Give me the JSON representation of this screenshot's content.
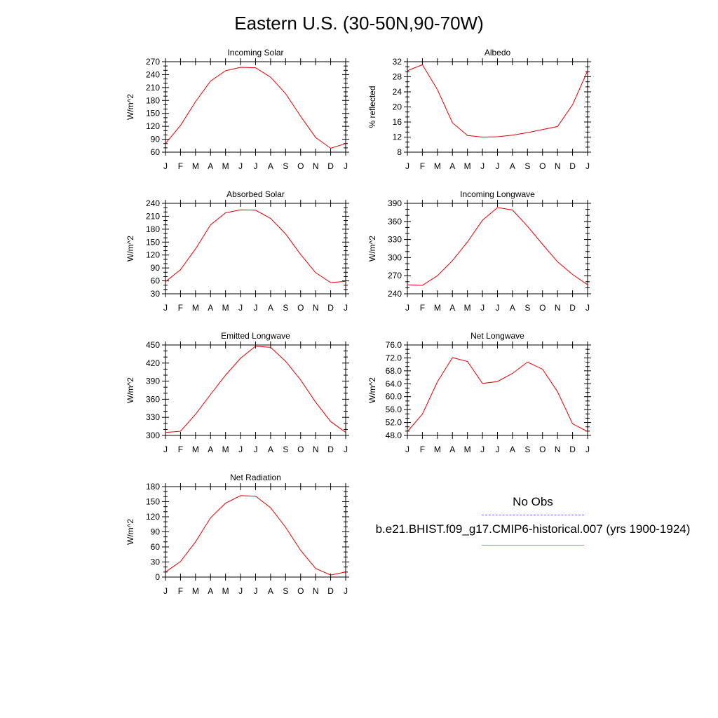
{
  "title": "Eastern U.S. (30-50N,90-70W)",
  "colors": {
    "model": "#e00000",
    "obs": "#6666ff",
    "model_legend": "#ff6666"
  },
  "legend": {
    "obs_label": "No Obs",
    "model_label": "b.e21.BHIST.f09_g17.CMIP6-historical.007 (yrs 1900-1924)"
  },
  "chart_data": [
    {
      "type": "line",
      "title": "Incoming Solar",
      "ylabel": "W/m^2",
      "x": [
        "J",
        "F",
        "M",
        "A",
        "M",
        "J",
        "J",
        "A",
        "S",
        "O",
        "N",
        "D",
        "J"
      ],
      "ylim": [
        60,
        270
      ],
      "yticks": [
        "60",
        "90",
        "120",
        "150",
        "180",
        "210",
        "240",
        "270"
      ],
      "series": [
        {
          "values": [
            80,
            122,
            177,
            225,
            249,
            257,
            256,
            234,
            196,
            143,
            94,
            69,
            80
          ]
        }
      ]
    },
    {
      "type": "line",
      "title": "Albedo",
      "ylabel": "% reflected",
      "x": [
        "J",
        "F",
        "M",
        "A",
        "M",
        "J",
        "J",
        "A",
        "S",
        "O",
        "N",
        "D",
        "J"
      ],
      "ylim": [
        8,
        32
      ],
      "yticks": [
        "8",
        "12",
        "16",
        "20",
        "24",
        "28",
        "32"
      ],
      "series": [
        {
          "values": [
            29.6,
            31.2,
            24.6,
            15.8,
            12.4,
            12.0,
            12.1,
            12.5,
            13.2,
            14.0,
            14.8,
            20.6,
            29.6
          ]
        }
      ]
    },
    {
      "type": "line",
      "title": "Absorbed Solar",
      "ylabel": "W/m^2",
      "x": [
        "J",
        "F",
        "M",
        "A",
        "M",
        "J",
        "J",
        "A",
        "S",
        "O",
        "N",
        "D",
        "J"
      ],
      "ylim": [
        30,
        240
      ],
      "yticks": [
        "30",
        "60",
        "90",
        "120",
        "150",
        "180",
        "210",
        "240"
      ],
      "series": [
        {
          "values": [
            58,
            86,
            134,
            190,
            218,
            225,
            224,
            205,
            169,
            121,
            79,
            56,
            59
          ]
        }
      ]
    },
    {
      "type": "line",
      "title": "Incoming Longwave",
      "ylabel": "W/m^2",
      "x": [
        "J",
        "F",
        "M",
        "A",
        "M",
        "J",
        "J",
        "A",
        "S",
        "O",
        "N",
        "D",
        "J"
      ],
      "ylim": [
        240,
        390
      ],
      "yticks": [
        "240",
        "270",
        "300",
        "330",
        "360",
        "390"
      ],
      "series": [
        {
          "values": [
            255,
            254,
            270,
            295,
            326,
            362,
            383,
            379,
            352,
            322,
            293,
            272,
            255
          ]
        }
      ]
    },
    {
      "type": "line",
      "title": "Emitted Longwave",
      "ylabel": "W/m^2",
      "x": [
        "J",
        "F",
        "M",
        "A",
        "M",
        "J",
        "J",
        "A",
        "S",
        "O",
        "N",
        "D",
        "J"
      ],
      "ylim": [
        300,
        450
      ],
      "yticks": [
        "300",
        "330",
        "360",
        "390",
        "420",
        "450"
      ],
      "series": [
        {
          "values": [
            305,
            307,
            335,
            368,
            400,
            428,
            448,
            446,
            423,
            392,
            355,
            323,
            305
          ]
        }
      ]
    },
    {
      "type": "line",
      "title": "Net Longwave",
      "ylabel": "W/m^2",
      "x": [
        "J",
        "F",
        "M",
        "A",
        "M",
        "J",
        "J",
        "A",
        "S",
        "O",
        "N",
        "D",
        "J"
      ],
      "ylim": [
        48,
        76
      ],
      "yticks": [
        "48.0",
        "52.0",
        "56.0",
        "60.0",
        "64.0",
        "68.0",
        "72.0",
        "76.0"
      ],
      "series": [
        {
          "values": [
            49.2,
            54.6,
            64.6,
            72.1,
            70.9,
            64.1,
            64.7,
            67.2,
            70.7,
            68.5,
            61.5,
            51.6,
            49.2
          ]
        }
      ]
    },
    {
      "type": "line",
      "title": "Net Radiation",
      "ylabel": "W/m^2",
      "x": [
        "J",
        "F",
        "M",
        "A",
        "M",
        "J",
        "J",
        "A",
        "S",
        "O",
        "N",
        "D",
        "J"
      ],
      "ylim": [
        0,
        180
      ],
      "yticks": [
        "0",
        "30",
        "60",
        "90",
        "120",
        "150",
        "180"
      ],
      "series": [
        {
          "values": [
            10,
            31,
            70,
            118,
            147,
            162,
            161,
            138,
            99,
            53,
            17,
            4,
            10
          ]
        }
      ]
    }
  ]
}
